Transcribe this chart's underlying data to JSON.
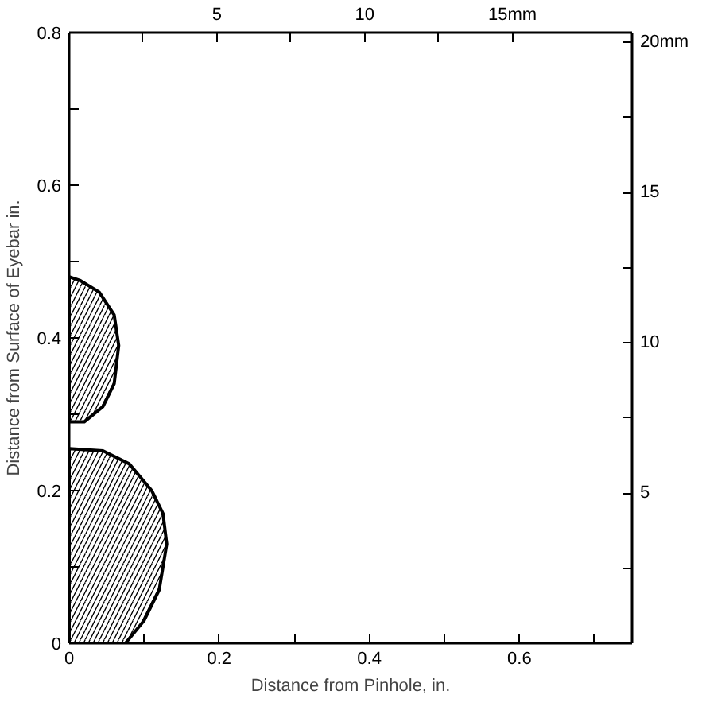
{
  "chart_data": {
    "type": "area",
    "xlabel": "Distance from Pinhole, in.",
    "ylabel": "Distance from Surface of Eyebar in.",
    "series": [
      {
        "color": "#000000",
        "x": [
          0,
          0.075,
          0.1,
          0.12,
          0.13,
          0.125,
          0.11,
          0.08,
          0.045,
          0
        ],
        "values": [
          0,
          0,
          0.03,
          0.07,
          0.13,
          0.17,
          0.2,
          0.235,
          0.252,
          0.255
        ]
      },
      {
        "color": "#000000",
        "x": [
          0,
          0.02,
          0.045,
          0.06,
          0.066,
          0.06,
          0.04,
          0.015,
          0
        ],
        "values": [
          0.29,
          0.29,
          0.31,
          0.34,
          0.39,
          0.43,
          0.46,
          0.475,
          0.48
        ]
      }
    ],
    "xlim": [
      0,
      0.75
    ],
    "ylim": [
      0,
      0.8
    ],
    "xticks": [
      0,
      {
        "value": 0.1,
        "label": null
      },
      0.2,
      {
        "value": 0.3,
        "label": null
      },
      0.4,
      {
        "value": 0.5,
        "label": null
      },
      0.6,
      {
        "value": 0.7,
        "label": null
      }
    ],
    "yticks": [
      0,
      {
        "value": 0.1,
        "label": null
      },
      0.2,
      {
        "value": 0.3,
        "label": null
      },
      0.4,
      {
        "value": 0.5,
        "label": null
      },
      0.6,
      {
        "value": 0.7,
        "label": null
      },
      0.8
    ],
    "x2lim": [
      0,
      19.05
    ],
    "x2ticks": [
      {
        "value": 2.5,
        "label": null
      },
      5,
      {
        "value": 7.5,
        "label": null
      },
      10,
      {
        "value": 12.5,
        "label": null
      },
      {
        "value": 15,
        "label": "15mm"
      }
    ],
    "y2lim": [
      0,
      20.32
    ],
    "y2ticks": [
      {
        "value": 2.5,
        "label": null
      },
      5,
      {
        "value": 7.5,
        "label": null
      },
      10,
      {
        "value": 12.5,
        "label": null
      },
      15,
      {
        "value": 17.5,
        "label": null
      },
      {
        "value": 20,
        "label": "20mm"
      }
    ],
    "grid": false
  }
}
